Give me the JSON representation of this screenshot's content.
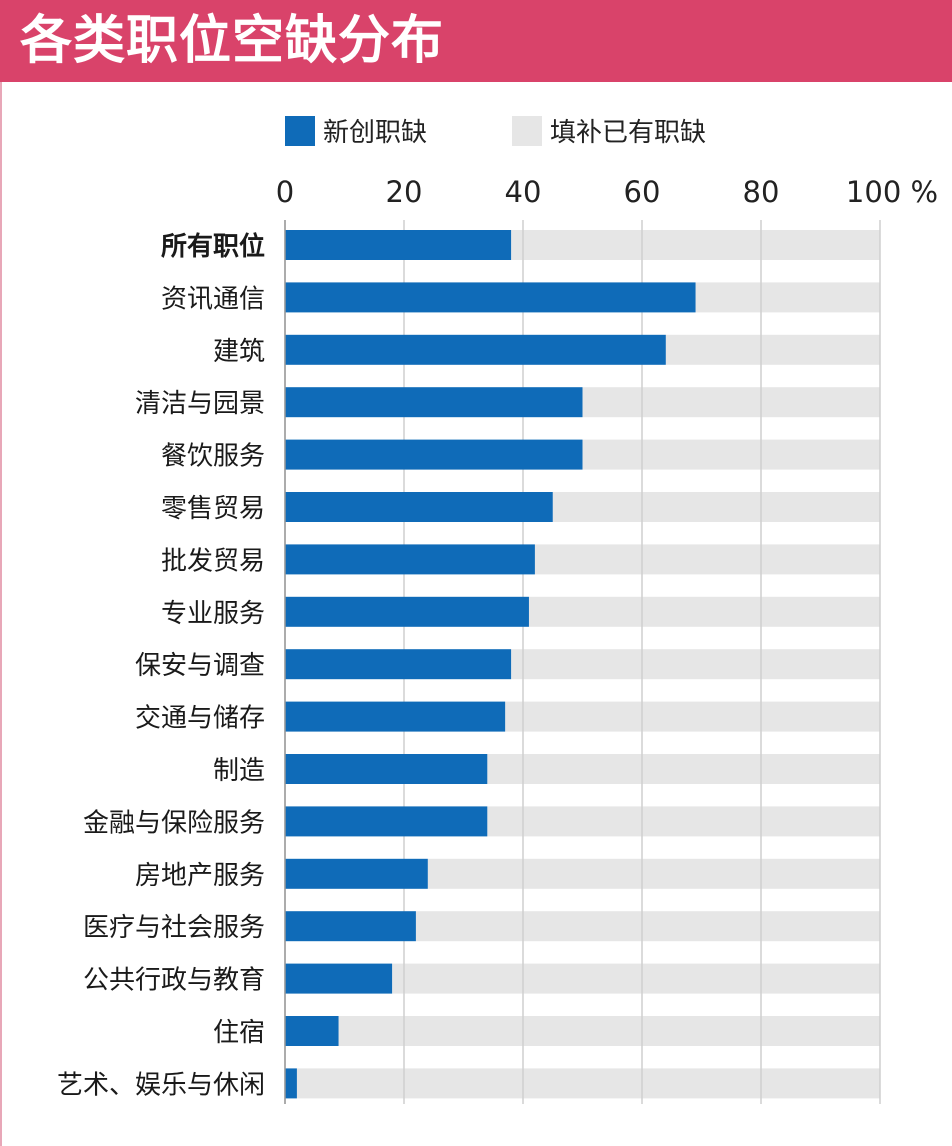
{
  "chart_data": {
    "type": "bar",
    "orientation": "horizontal",
    "stacked_to_100": true,
    "title": "各类职位空缺分布",
    "legend": [
      {
        "name": "新创职缺",
        "color": "#0f6bb8"
      },
      {
        "name": "填补已有职缺",
        "color": "#e6e6e6"
      }
    ],
    "legend_placement": "top",
    "axis": {
      "xlim": [
        0,
        100
      ],
      "ticks": [
        "0",
        "20",
        "40",
        "60",
        "80",
        "100 %"
      ],
      "tick_values": [
        0,
        20,
        40,
        60,
        80,
        100
      ],
      "grid": true
    },
    "categories": [
      "所有职位",
      "资讯通信",
      "建筑",
      "清洁与园景",
      "餐饮服务",
      "零售贸易",
      "批发贸易",
      "专业服务",
      "保安与调查",
      "交通与储存",
      "制造",
      "金融与保险服务",
      "房地产服务",
      "医疗与社会服务",
      "公共行政与教育",
      "住宿",
      "艺术、娱乐与休闲"
    ],
    "bold_categories": [
      "所有职位"
    ],
    "series": [
      {
        "name": "新创职缺",
        "values": [
          38,
          69,
          64,
          50,
          50,
          45,
          42,
          41,
          38,
          37,
          34,
          34,
          24,
          22,
          18,
          9,
          2
        ]
      },
      {
        "name": "填补已有职缺",
        "values": [
          62,
          31,
          36,
          50,
          50,
          55,
          58,
          59,
          62,
          63,
          66,
          66,
          76,
          78,
          82,
          91,
          98
        ]
      }
    ]
  }
}
